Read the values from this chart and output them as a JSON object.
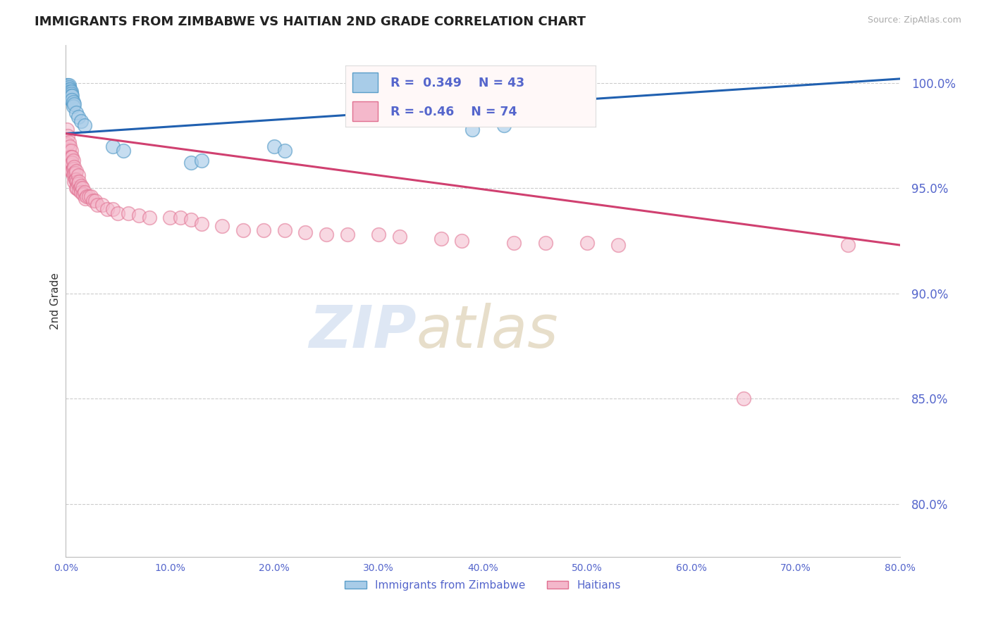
{
  "title": "IMMIGRANTS FROM ZIMBABWE VS HAITIAN 2ND GRADE CORRELATION CHART",
  "source_text": "Source: ZipAtlas.com",
  "ylabel": "2nd Grade",
  "ytick_labels": [
    "100.0%",
    "95.0%",
    "90.0%",
    "85.0%",
    "80.0%"
  ],
  "ytick_values": [
    1.0,
    0.95,
    0.9,
    0.85,
    0.8
  ],
  "xlim": [
    0.0,
    0.8
  ],
  "ylim": [
    0.775,
    1.018
  ],
  "blue_R": 0.349,
  "blue_N": 43,
  "pink_R": -0.46,
  "pink_N": 74,
  "blue_color": "#a8cce8",
  "pink_color": "#f4b8cb",
  "blue_edge_color": "#5a9ec9",
  "pink_edge_color": "#e07090",
  "blue_line_color": "#2060b0",
  "pink_line_color": "#d04070",
  "grid_color": "#cccccc",
  "title_color": "#222222",
  "axis_color": "#5566cc",
  "legend_label_blue": "Immigrants from Zimbabwe",
  "legend_label_pink": "Haitians",
  "blue_x": [
    0.001,
    0.001,
    0.001,
    0.002,
    0.002,
    0.002,
    0.002,
    0.002,
    0.002,
    0.003,
    0.003,
    0.003,
    0.003,
    0.003,
    0.003,
    0.003,
    0.003,
    0.004,
    0.004,
    0.004,
    0.004,
    0.004,
    0.005,
    0.005,
    0.005,
    0.005,
    0.006,
    0.006,
    0.007,
    0.007,
    0.008,
    0.01,
    0.012,
    0.015,
    0.018,
    0.045,
    0.055,
    0.12,
    0.13,
    0.2,
    0.21,
    0.39,
    0.42
  ],
  "blue_y": [
    0.999,
    0.998,
    0.997,
    0.999,
    0.998,
    0.998,
    0.997,
    0.997,
    0.996,
    0.999,
    0.998,
    0.997,
    0.996,
    0.995,
    0.995,
    0.994,
    0.993,
    0.997,
    0.996,
    0.995,
    0.994,
    0.993,
    0.996,
    0.995,
    0.994,
    0.992,
    0.994,
    0.992,
    0.991,
    0.989,
    0.99,
    0.986,
    0.984,
    0.982,
    0.98,
    0.97,
    0.968,
    0.962,
    0.963,
    0.97,
    0.968,
    0.978,
    0.98
  ],
  "pink_x": [
    0.001,
    0.002,
    0.002,
    0.003,
    0.003,
    0.003,
    0.004,
    0.004,
    0.004,
    0.005,
    0.005,
    0.005,
    0.005,
    0.006,
    0.006,
    0.006,
    0.007,
    0.007,
    0.007,
    0.008,
    0.008,
    0.008,
    0.009,
    0.009,
    0.01,
    0.01,
    0.01,
    0.011,
    0.011,
    0.012,
    0.012,
    0.013,
    0.013,
    0.014,
    0.015,
    0.015,
    0.016,
    0.017,
    0.018,
    0.019,
    0.02,
    0.022,
    0.024,
    0.026,
    0.028,
    0.03,
    0.035,
    0.04,
    0.045,
    0.05,
    0.06,
    0.07,
    0.08,
    0.1,
    0.11,
    0.12,
    0.13,
    0.15,
    0.17,
    0.19,
    0.21,
    0.23,
    0.25,
    0.27,
    0.3,
    0.32,
    0.36,
    0.38,
    0.43,
    0.46,
    0.5,
    0.53,
    0.65,
    0.75
  ],
  "pink_y": [
    0.978,
    0.975,
    0.971,
    0.972,
    0.968,
    0.965,
    0.97,
    0.965,
    0.962,
    0.968,
    0.965,
    0.961,
    0.958,
    0.965,
    0.962,
    0.958,
    0.963,
    0.959,
    0.956,
    0.96,
    0.957,
    0.953,
    0.957,
    0.954,
    0.958,
    0.954,
    0.95,
    0.953,
    0.95,
    0.956,
    0.952,
    0.953,
    0.949,
    0.95,
    0.951,
    0.948,
    0.95,
    0.947,
    0.948,
    0.945,
    0.946,
    0.946,
    0.946,
    0.944,
    0.944,
    0.942,
    0.942,
    0.94,
    0.94,
    0.938,
    0.938,
    0.937,
    0.936,
    0.936,
    0.936,
    0.935,
    0.933,
    0.932,
    0.93,
    0.93,
    0.93,
    0.929,
    0.928,
    0.928,
    0.928,
    0.927,
    0.926,
    0.925,
    0.924,
    0.924,
    0.924,
    0.923,
    0.85,
    0.923
  ]
}
